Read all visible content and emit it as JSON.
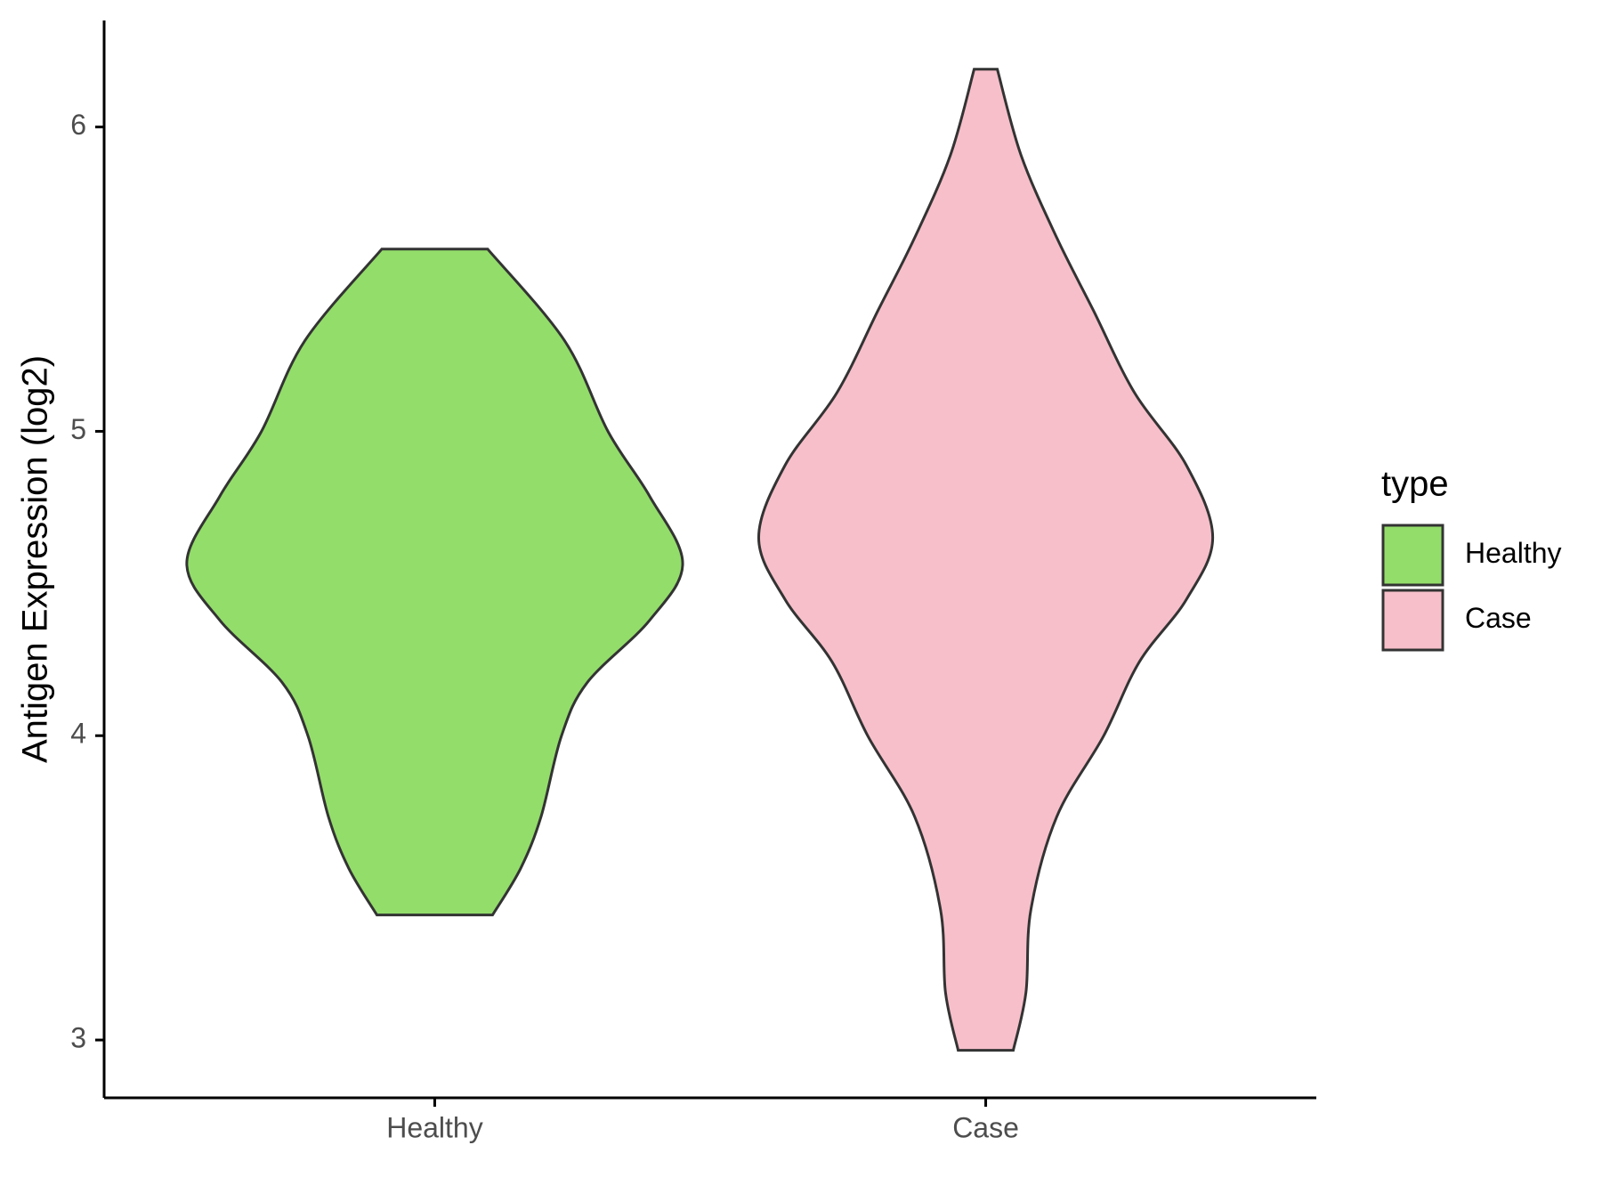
{
  "chart_data": {
    "type": "violin",
    "y_label": "Antigen Expression (log2)",
    "categories": [
      "Healthy",
      "Case"
    ],
    "ylim": [
      2.81,
      6.35
    ],
    "yticks": [
      3,
      4,
      5,
      6
    ],
    "legend_title": "type",
    "legend_position": "right",
    "series": [
      {
        "name": "Healthy",
        "color": "#93dd6a",
        "y": [
          5.599,
          5.297,
          4.998,
          4.787,
          4.566,
          4.379,
          4.175,
          3.999,
          3.734,
          3.564,
          3.411
        ],
        "width": [
          0.096,
          0.236,
          0.315,
          0.39,
          0.45,
          0.39,
          0.277,
          0.23,
          0.193,
          0.156,
          0.105
        ]
      },
      {
        "name": "Case",
        "color": "#f7bfca",
        "y": [
          6.19,
          5.908,
          5.636,
          5.399,
          5.127,
          4.889,
          4.651,
          4.447,
          4.243,
          3.999,
          3.734,
          3.428,
          3.156,
          2.966
        ],
        "width": [
          0.021,
          0.064,
          0.129,
          0.195,
          0.27,
          0.364,
          0.412,
          0.364,
          0.279,
          0.214,
          0.129,
          0.082,
          0.073,
          0.05
        ]
      }
    ]
  }
}
